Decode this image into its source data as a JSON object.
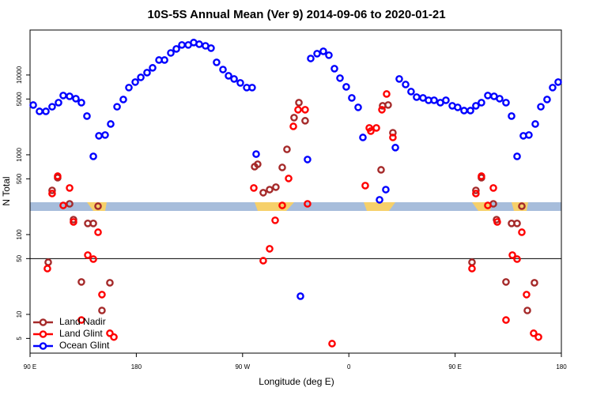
{
  "chart_data": {
    "type": "scatter",
    "title": "10S-5S Annual Mean (Ver 9)   2014-09-06 to 2020-01-21",
    "x_label": "Longitude (deg E)",
    "y_label": "N Total",
    "xlim": [
      90,
      540
    ],
    "xticks": [
      {
        "value": 90,
        "label": "90 E"
      },
      180,
      {
        "value": 270,
        "label": "90 W"
      },
      {
        "value": 360,
        "label": "0"
      },
      {
        "value": 450,
        "label": "90 E"
      },
      {
        "value": 540,
        "label": "180"
      }
    ],
    "ylim": [
      3.27,
      36600
    ],
    "log_y": true,
    "yticks": [
      5,
      10,
      50,
      100,
      500,
      1000,
      5000,
      10000
    ],
    "hline": 50,
    "legend": "lower left",
    "series": [
      {
        "name": "Land Nadir",
        "color": "#a52a2a",
        "x": [
          105.4,
          108.7,
          113.4,
          123.5,
          126.8,
          133.5,
          138.9,
          143.6,
          147.6,
          150.9,
          157.6,
          280.2,
          282.8,
          287.5,
          292.9,
          298.2,
          303.6,
          307.6,
          313.6,
          317.7,
          323.0,
          387.3,
          388.6,
          393.3,
          397.3,
          464.3,
          467.6,
          472.3,
          482.4,
          485.1,
          493.1,
          497.8,
          502.5,
          506.5,
          511.2,
          517.2
        ],
        "values": [
          45,
          358,
          516,
          243,
          154,
          25.5,
          138,
          138,
          227,
          11.2,
          24.9,
          710,
          761,
          335,
          366,
          393,
          694,
          1170,
          2920,
          4500,
          2670,
          648,
          4110,
          4210,
          1890,
          45,
          358,
          516,
          243,
          154,
          25.5,
          138,
          138,
          227,
          11.2,
          24.9
        ]
      },
      {
        "name": "Land Glint",
        "color": "#ff0000",
        "x": [
          104.7,
          108.7,
          113.4,
          118.1,
          123.5,
          126.8,
          133.5,
          138.9,
          143.6,
          147.6,
          150.9,
          157.6,
          161.0,
          279.5,
          287.5,
          292.9,
          297.6,
          303.6,
          309.0,
          313.0,
          317.0,
          323.0,
          325.0,
          345.8,
          373.9,
          377.3,
          378.6,
          383.3,
          388.0,
          392.0,
          397.3,
          464.3,
          467.6,
          472.3,
          477.7,
          482.4,
          485.7,
          493.1,
          498.5,
          502.5,
          506.5,
          510.5,
          516.5,
          520.6
        ],
        "values": [
          37.5,
          327,
          540,
          232,
          384,
          144,
          8.5,
          55.3,
          49.3,
          107,
          17.7,
          5.8,
          5.2,
          384,
          47.1,
          66.4,
          151,
          232,
          505,
          2270,
          3670,
          3670,
          243,
          4.3,
          411,
          2170,
          1980,
          2170,
          3670,
          5780,
          1650,
          37.5,
          327,
          540,
          232,
          384,
          144,
          8.5,
          55.3,
          49.3,
          107,
          17.7,
          5.8,
          5.2
        ]
      },
      {
        "name": "Ocean Glint",
        "color": "#0000ff",
        "x": [
          92.7,
          98.0,
          103.4,
          108.7,
          114.1,
          118.1,
          123.5,
          128.8,
          133.5,
          138.2,
          143.6,
          148.3,
          153.6,
          158.3,
          163.7,
          169.0,
          173.7,
          179.1,
          183.8,
          189.1,
          193.8,
          199.2,
          203.9,
          209.2,
          213.9,
          218.6,
          224.0,
          228.6,
          233.3,
          238.6,
          243.3,
          248.0,
          253.4,
          258.1,
          262.8,
          268.1,
          273.5,
          278.1,
          281.5,
          319.0,
          325.0,
          327.7,
          333.1,
          338.4,
          343.1,
          347.8,
          352.5,
          357.8,
          362.5,
          367.9,
          371.9,
          386.0,
          391.3,
          399.4,
          402.7,
          408.1,
          412.7,
          417.4,
          422.8,
          427.5,
          432.2,
          437.5,
          442.2,
          447.6,
          452.2,
          457.6,
          463.0,
          467.6,
          472.3,
          477.7,
          483.0,
          487.7,
          493.1,
          497.8,
          502.5,
          507.8,
          512.5,
          517.9,
          522.6,
          527.9,
          532.6,
          537.3
        ],
        "values": [
          4200,
          3500,
          3500,
          4000,
          4500,
          5530,
          5400,
          5050,
          4500,
          3055,
          955,
          1730,
          1770,
          2430,
          4000,
          4930,
          6950,
          8150,
          9340,
          10700,
          12300,
          15400,
          15400,
          18900,
          21200,
          23800,
          23800,
          25500,
          24300,
          23200,
          21700,
          14400,
          11700,
          9770,
          8920,
          7960,
          6950,
          6950,
          1020,
          16.9,
          873,
          16100,
          18500,
          19800,
          17700,
          12000,
          9130,
          7100,
          5160,
          3930,
          1650,
          273,
          366,
          1230,
          8920,
          7600,
          6190,
          5280,
          5160,
          4820,
          4820,
          4500,
          4820,
          4110,
          3930,
          3580,
          3580,
          4110,
          4500,
          5530,
          5400,
          5050,
          4500,
          3055,
          955,
          1730,
          1770,
          2430,
          4000,
          4930,
          6950,
          8150
        ]
      }
    ]
  }
}
